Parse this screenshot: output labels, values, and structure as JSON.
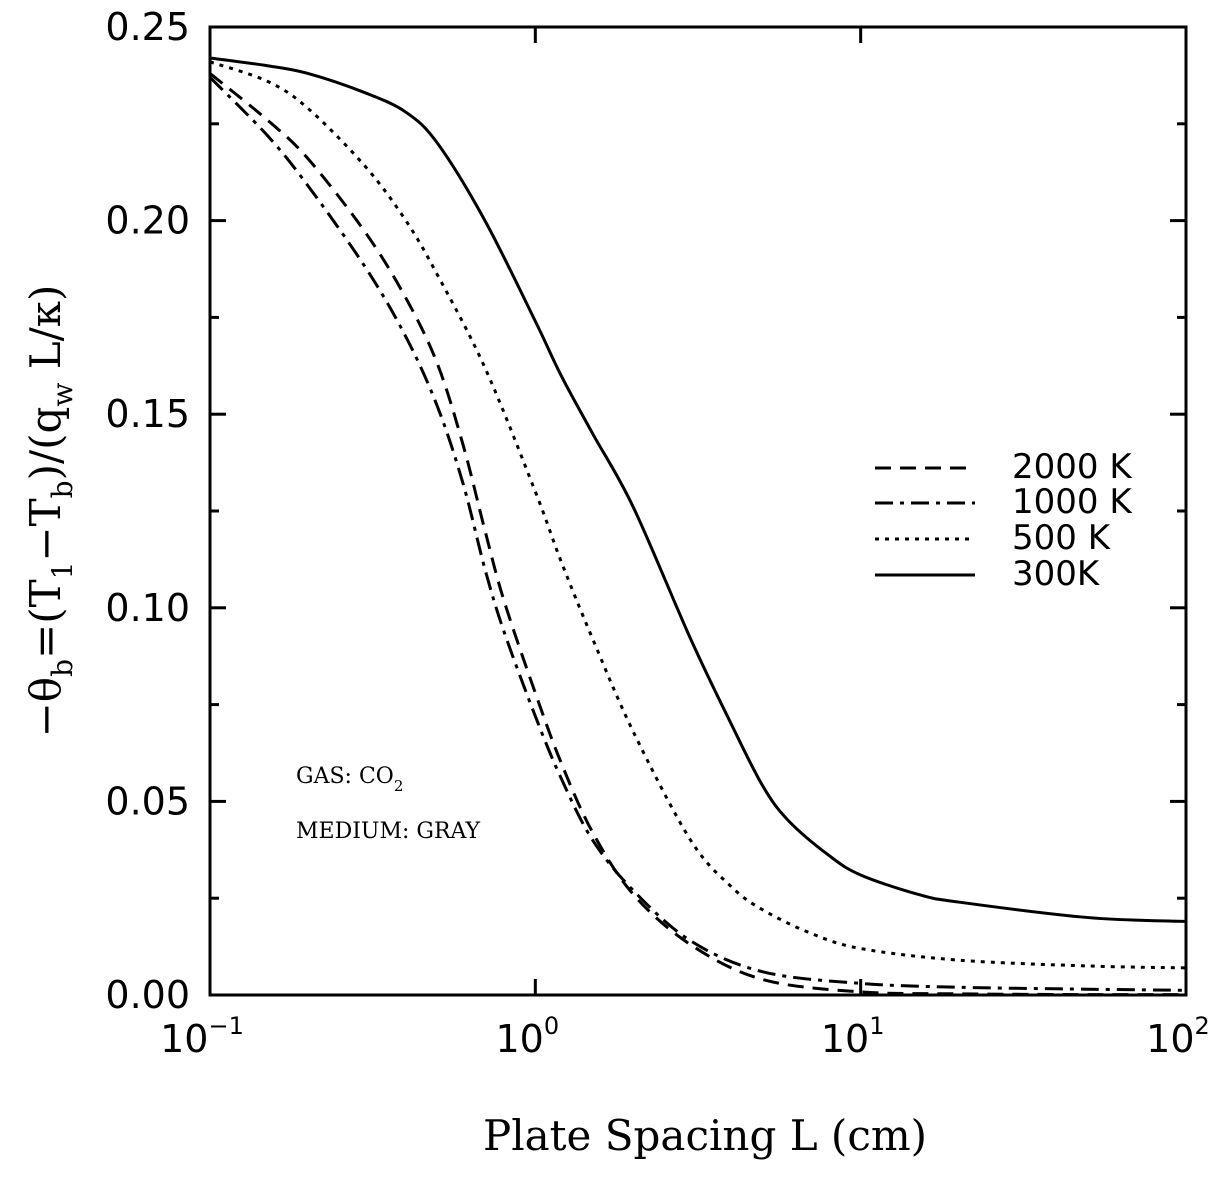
{
  "chart_data": {
    "type": "line",
    "xlabel": "Plate Spacing L (cm)",
    "ylabel": {
      "prefix": "−θ",
      "sub_b": "b",
      "mid1": "=(T",
      "sub_1": "1",
      "mid2": "−T",
      "sub_b2": "b",
      "mid3": ")/(q",
      "sub_w": "w",
      "suffix": " L/κ)"
    },
    "x_scale": "log",
    "xlim": [
      0.1,
      100
    ],
    "ylim": [
      0,
      0.25
    ],
    "x_ticks": [
      {
        "base": "10",
        "exp": "−1",
        "value": 0.1
      },
      {
        "base": "10",
        "exp": "0",
        "value": 1
      },
      {
        "base": "10",
        "exp": "1",
        "value": 10
      },
      {
        "base": "10",
        "exp": "2",
        "value": 100
      }
    ],
    "y_ticks": [
      {
        "label": "0.00",
        "value": 0
      },
      {
        "label": "0.05",
        "value": 0.05
      },
      {
        "label": "0.10",
        "value": 0.1
      },
      {
        "label": "0.15",
        "value": 0.15
      },
      {
        "label": "0.20",
        "value": 0.2
      },
      {
        "label": "0.25",
        "value": 0.25
      }
    ],
    "grid": false,
    "legend_position": "right-center",
    "annotations": {
      "gas_prefix": "GAS: CO",
      "gas_sub": "2",
      "medium": "MEDIUM: GRAY"
    },
    "series": [
      {
        "name": "2000 K",
        "style": "dashed",
        "x": [
          0.1,
          0.15,
          0.2,
          0.3,
          0.4,
          0.5,
          0.6,
          0.7,
          0.8,
          1.0,
          1.2,
          1.5,
          2.0,
          3.0,
          5.0,
          10,
          20,
          50,
          100
        ],
        "y": [
          0.238,
          0.226,
          0.216,
          0.197,
          0.18,
          0.163,
          0.142,
          0.12,
          0.102,
          0.078,
          0.06,
          0.042,
          0.026,
          0.013,
          0.004,
          0.0008,
          0.0003,
          0.0001,
          0.0001
        ]
      },
      {
        "name": "1000 K",
        "style": "dash-dot",
        "x": [
          0.1,
          0.15,
          0.2,
          0.3,
          0.4,
          0.5,
          0.6,
          0.7,
          0.8,
          1.0,
          1.2,
          1.5,
          2.0,
          3.0,
          5.0,
          10,
          20,
          50,
          100
        ],
        "y": [
          0.237,
          0.222,
          0.209,
          0.188,
          0.17,
          0.152,
          0.132,
          0.11,
          0.094,
          0.072,
          0.056,
          0.04,
          0.027,
          0.014,
          0.006,
          0.003,
          0.002,
          0.0015,
          0.0012
        ]
      },
      {
        "name": "500 K",
        "style": "dotted",
        "x": [
          0.1,
          0.15,
          0.2,
          0.3,
          0.4,
          0.5,
          0.7,
          1.0,
          1.2,
          1.5,
          2.0,
          3.0,
          4.0,
          5.0,
          7.0,
          10,
          20,
          50,
          100
        ],
        "y": [
          0.241,
          0.236,
          0.229,
          0.214,
          0.2,
          0.186,
          0.162,
          0.13,
          0.112,
          0.092,
          0.068,
          0.04,
          0.028,
          0.022,
          0.016,
          0.012,
          0.009,
          0.0075,
          0.007
        ]
      },
      {
        "name": "300K",
        "style": "solid",
        "x": [
          0.1,
          0.15,
          0.2,
          0.3,
          0.4,
          0.5,
          0.7,
          1.0,
          1.2,
          1.5,
          2.0,
          3.0,
          4.0,
          5.0,
          6.0,
          8.0,
          10,
          15,
          20,
          50,
          100
        ],
        "y": [
          0.242,
          0.24,
          0.238,
          0.233,
          0.228,
          0.22,
          0.2,
          0.174,
          0.16,
          0.145,
          0.126,
          0.092,
          0.07,
          0.054,
          0.045,
          0.036,
          0.031,
          0.026,
          0.024,
          0.02,
          0.019
        ]
      }
    ]
  }
}
